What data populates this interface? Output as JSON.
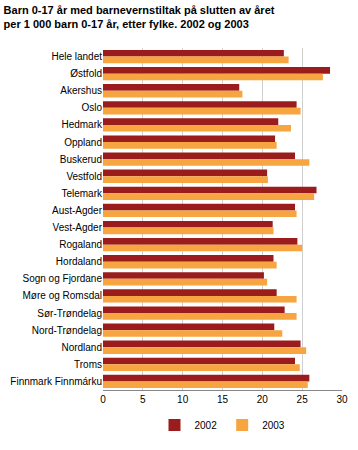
{
  "chart_data": {
    "type": "bar",
    "orientation": "horizontal",
    "title": "Barn 0-17 år med barnevernstiltak på slutten av året\nper 1 000 barn 0-17 år, etter fylke. 2002 og 2003",
    "categories": [
      "Hele landet",
      "Østfold",
      "Akershus",
      "Oslo",
      "Hedmark",
      "Oppland",
      "Buskerud",
      "Vestfold",
      "Telemark",
      "Aust-Agder",
      "Vest-Agder",
      "Rogaland",
      "Hordaland",
      "Sogn og Fjordane",
      "Møre og Romsdal",
      "Sør-Trøndelag",
      "Nord-Trøndelag",
      "Nordland",
      "Troms",
      "Finnmark Finnmárku"
    ],
    "series": [
      {
        "name": "2002",
        "color": "#9b1c1c",
        "values": [
          22.7,
          28.5,
          17.1,
          24.3,
          22.0,
          21.6,
          24.1,
          20.6,
          26.8,
          24.1,
          21.3,
          24.4,
          21.4,
          20.2,
          21.8,
          22.8,
          21.5,
          24.8,
          24.1,
          25.9
        ]
      },
      {
        "name": "2003",
        "color": "#f7a541",
        "values": [
          23.3,
          27.6,
          17.5,
          24.8,
          23.6,
          21.8,
          25.9,
          20.7,
          26.5,
          24.3,
          21.4,
          25.0,
          21.8,
          20.6,
          24.3,
          24.3,
          22.5,
          25.5,
          24.7,
          25.7
        ]
      }
    ],
    "xlim": [
      0,
      30
    ],
    "xticks": [
      0,
      5,
      10,
      15,
      20,
      25,
      30
    ],
    "grid": true,
    "legend": "bottom"
  }
}
